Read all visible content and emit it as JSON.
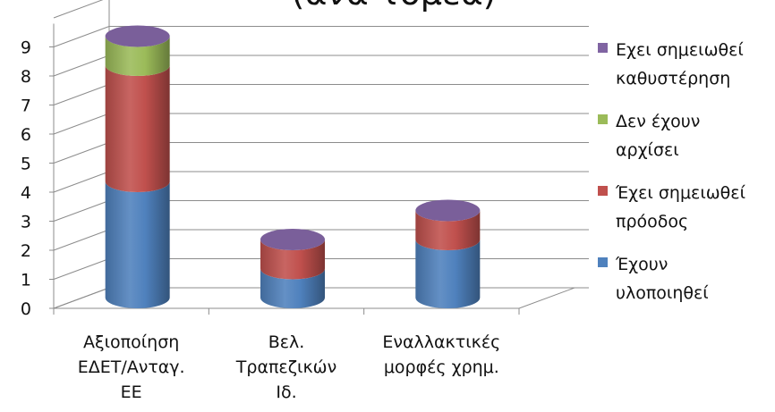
{
  "chart_data": {
    "type": "bar",
    "stacked": true,
    "style": "3d-cylinder",
    "title": "(ανά τομέα)",
    "categories": [
      "Αξιοποίηση ΕΔΕΤ/Ανταγ. ΕΕ",
      "Βελ. Τραπεζικών Ιδ.",
      "Εναλλακτικές μορφές χρημ."
    ],
    "category_lines": [
      [
        "Αξιοποίηση",
        "ΕΔΕΤ/Ανταγ.",
        "ΕΕ"
      ],
      [
        "Βελ.",
        "Τραπεζικών",
        "Ιδ."
      ],
      [
        "Εναλλακτικές",
        "μορφές χρημ."
      ]
    ],
    "series": [
      {
        "name": "Έχουν υλοποιηθεί",
        "legend_lines": [
          "Έχουν",
          "υλοποιηθεί"
        ],
        "color": "#4f81bd",
        "values": [
          4,
          1,
          2
        ]
      },
      {
        "name": "Έχει σημειωθεί πρόοδος",
        "legend_lines": [
          "Έχει σημειωθεί",
          "πρόοδος"
        ],
        "color": "#c0504d",
        "values": [
          4,
          1,
          1
        ]
      },
      {
        "name": "Δεν έχουν αρχίσει",
        "legend_lines": [
          "Δεν έχουν",
          "αρχίσει"
        ],
        "color": "#9bbb59",
        "values": [
          1,
          0,
          0
        ]
      },
      {
        "name": "Εχει σημειωθεί καθυστέρηση",
        "legend_lines": [
          "Εχει σημειωθεί",
          "καθυστέρηση"
        ],
        "color": "#8064a2",
        "values": [
          0,
          0,
          0
        ]
      }
    ],
    "yticks": [
      "0",
      "1",
      "2",
      "3",
      "4",
      "5",
      "6",
      "7",
      "8",
      "9"
    ],
    "ylim": [
      0,
      10
    ],
    "grid": true,
    "legend_position": "right"
  }
}
